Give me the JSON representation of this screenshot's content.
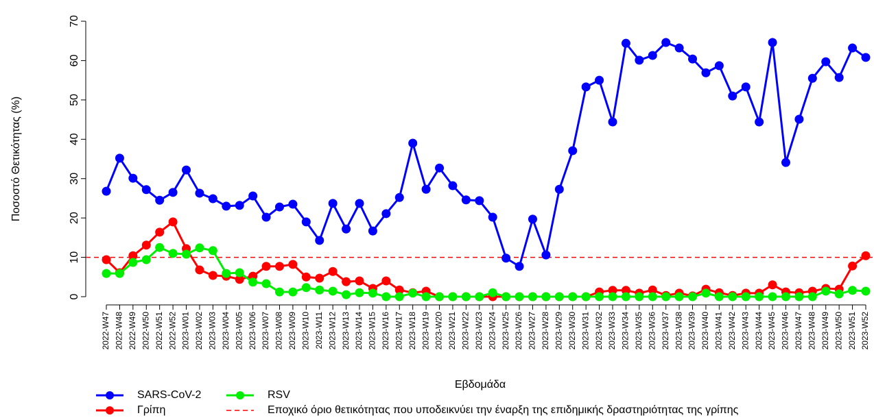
{
  "chart_data": {
    "type": "line",
    "y_label": "Ποσοστό Θετικότητας (%)",
    "x_label": "Εβδομάδα",
    "categories": [
      "2022-W47",
      "2022-W48",
      "2022-W49",
      "2022-W50",
      "2022-W51",
      "2022-W52",
      "2023-W01",
      "2023-W02",
      "2023-W03",
      "2023-W04",
      "2023-W05",
      "2023-W06",
      "2023-W07",
      "2023-W08",
      "2023-W09",
      "2023-W10",
      "2023-W11",
      "2023-W12",
      "2023-W13",
      "2023-W14",
      "2023-W15",
      "2023-W16",
      "2023-W17",
      "2023-W18",
      "2023-W19",
      "2023-W20",
      "2023-W21",
      "2023-W22",
      "2023-W23",
      "2023-W24",
      "2023-W25",
      "2023-W26",
      "2023-W27",
      "2023-W28",
      "2023-W29",
      "2023-W30",
      "2023-W31",
      "2023-W32",
      "2023-W33",
      "2023-W34",
      "2023-W35",
      "2023-W36",
      "2023-W37",
      "2023-W38",
      "2023-W39",
      "2023-W40",
      "2023-W41",
      "2023-W42",
      "2023-W43",
      "2023-W44",
      "2023-W45",
      "2023-W46",
      "2023-W47",
      "2023-W48",
      "2023-W49",
      "2023-W50",
      "2023-W51",
      "2023-W52"
    ],
    "series": [
      {
        "name": "SARS-CoV-2",
        "color": "#0000ff",
        "values": [
          26.8,
          35.2,
          30.1,
          27.2,
          24.5,
          26.5,
          32.2,
          26.3,
          24.9,
          23.0,
          23.2,
          25.6,
          20.2,
          22.8,
          23.5,
          19.0,
          14.3,
          23.7,
          17.2,
          23.7,
          16.7,
          21.1,
          25.2,
          39.0,
          27.3,
          32.7,
          28.2,
          24.6,
          24.4,
          20.2,
          9.8,
          7.7,
          19.7,
          10.6,
          27.3,
          37.1,
          53.3,
          55.0,
          44.4,
          64.4,
          60.1,
          61.3,
          64.6,
          63.2,
          60.4,
          56.9,
          58.7,
          51.0,
          53.3,
          44.4,
          64.6,
          34.1,
          45.1,
          55.5,
          59.7,
          55.7,
          63.2,
          60.8
        ]
      },
      {
        "name": "Γρίπη",
        "color": "#ff0000",
        "values": [
          9.4,
          6.1,
          10.4,
          13.1,
          16.4,
          19.0,
          12.2,
          6.8,
          5.4,
          5.2,
          4.4,
          5.2,
          7.7,
          7.7,
          8.2,
          5.0,
          4.7,
          6.4,
          3.8,
          4.0,
          2.1,
          4.0,
          1.7,
          1.0,
          1.4,
          0,
          0,
          0,
          0,
          0,
          0,
          0,
          0,
          0,
          0,
          0,
          0,
          1.2,
          1.6,
          1.6,
          0.9,
          1.7,
          0.3,
          0.9,
          0.2,
          1.9,
          1.0,
          0.3,
          0.9,
          0.9,
          3.0,
          1.2,
          1.0,
          1.4,
          2.1,
          1.9,
          7.8,
          10.4
        ]
      },
      {
        "name": "RSV",
        "color": "#00ee00",
        "values": [
          5.9,
          5.9,
          8.7,
          9.4,
          12.5,
          11.0,
          10.8,
          12.4,
          11.7,
          5.9,
          6.1,
          3.7,
          3.3,
          1.2,
          1.2,
          2.3,
          1.7,
          1.4,
          0.5,
          1.0,
          0.9,
          0,
          0,
          0.9,
          0,
          0,
          0,
          0,
          0,
          1.0,
          0,
          0,
          0,
          0,
          0,
          0,
          0,
          0,
          0,
          0,
          0,
          0,
          0,
          0,
          0,
          0.9,
          0,
          0,
          0,
          0,
          0,
          0,
          0,
          0,
          1.4,
          0.7,
          1.6,
          1.4
        ]
      }
    ],
    "threshold": {
      "value": 10,
      "label": "Εποχικό όριο θετικότητας που υποδεικνύει την έναρξη της επιδημικής δραστηριότητας της γρίπης",
      "color": "#ff0000"
    },
    "ylim": [
      0,
      70
    ],
    "yticks": [
      0,
      10,
      20,
      30,
      40,
      50,
      60,
      70
    ]
  }
}
